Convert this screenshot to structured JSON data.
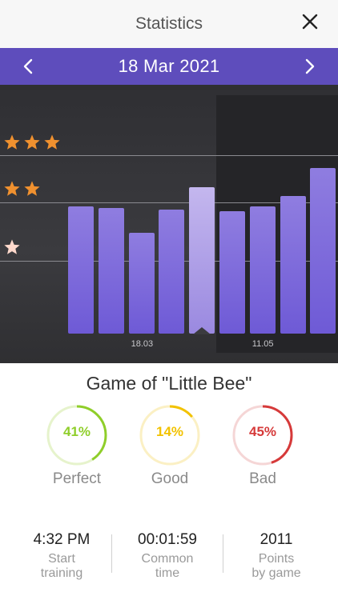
{
  "header": {
    "title": "Statistics",
    "close_icon": "close-icon"
  },
  "date_bar": {
    "date": "18 Mar 2021",
    "prev_icon": "chevron-left-icon",
    "next_icon": "chevron-right-icon",
    "background": "#5e4dbc"
  },
  "chart_data": {
    "type": "bar",
    "y_levels": [
      {
        "stars": 3,
        "label": "★★★"
      },
      {
        "stars": 2,
        "label": "★★"
      },
      {
        "stars": 1,
        "label": "★"
      }
    ],
    "tick_labels": [
      {
        "index": 2,
        "label": "18.03"
      },
      {
        "index": 6,
        "label": "11.05"
      }
    ],
    "values": [
      0.73,
      0.72,
      0.58,
      0.71,
      0.84,
      0.7,
      0.73,
      0.79,
      0.95
    ],
    "selected_index": 4,
    "ylim": [
      0,
      1
    ],
    "star_color": "#f0912f",
    "bar_color": "#7b68dd"
  },
  "game": {
    "title": "Game of \"Little Bee\""
  },
  "results": [
    {
      "value": "41%",
      "label": "Perfect",
      "percent": 41,
      "color": "#8fce2a",
      "track": "#e6f3cc"
    },
    {
      "value": "14%",
      "label": "Good",
      "percent": 14,
      "color": "#f2c200",
      "track": "#fbf0c4"
    },
    {
      "value": "45%",
      "label": "Bad",
      "percent": 45,
      "color": "#d63a3a",
      "track": "#f5d6d6"
    }
  ],
  "stats": [
    {
      "value": "4:32 PM",
      "line1": "Start",
      "line2": "training"
    },
    {
      "value": "00:01:59",
      "line1": "Common",
      "line2": "time"
    },
    {
      "value": "2011",
      "line1": "Points",
      "line2": "by game"
    }
  ]
}
